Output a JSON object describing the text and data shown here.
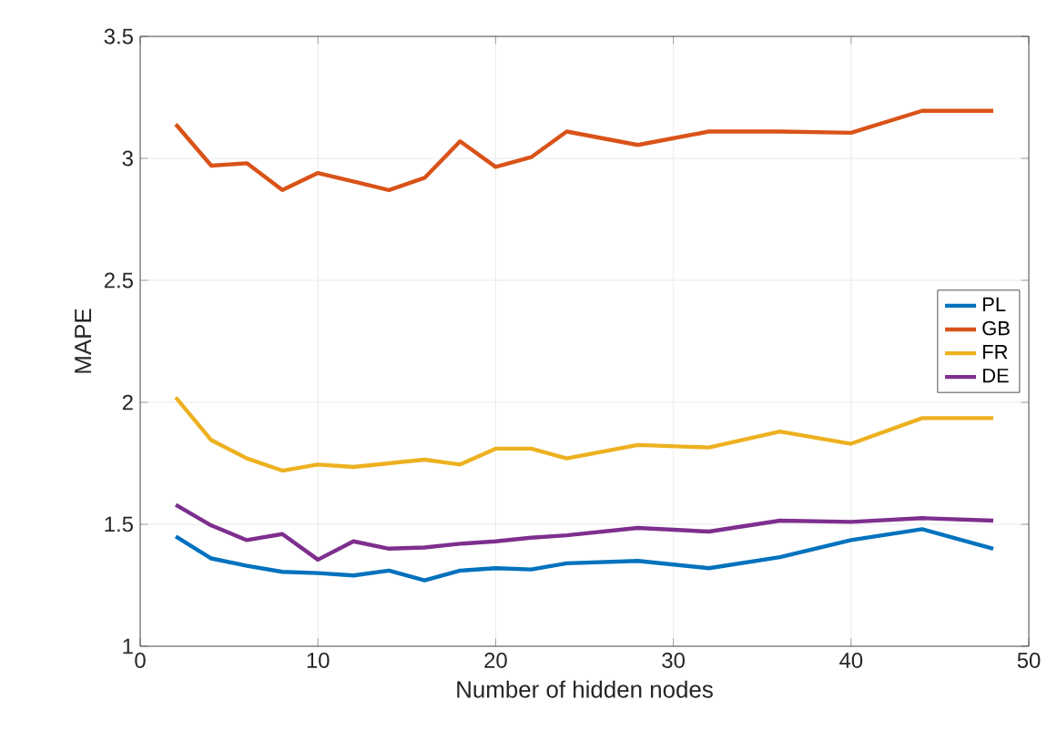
{
  "chart_data": {
    "type": "line",
    "xlabel": "Number of hidden nodes",
    "ylabel": "MAPE",
    "x": [
      2,
      4,
      6,
      8,
      10,
      12,
      14,
      16,
      18,
      20,
      22,
      24,
      28,
      32,
      36,
      40,
      44,
      48
    ],
    "series": [
      {
        "name": "PL",
        "color": "#0072bd",
        "values": [
          1.45,
          1.36,
          1.33,
          1.305,
          1.3,
          1.29,
          1.31,
          1.27,
          1.31,
          1.32,
          1.315,
          1.34,
          1.35,
          1.32,
          1.365,
          1.435,
          1.48,
          1.4
        ]
      },
      {
        "name": "GB",
        "color": "#d95319",
        "values": [
          3.14,
          2.97,
          2.98,
          2.87,
          2.94,
          2.905,
          2.87,
          2.92,
          3.07,
          2.965,
          3.005,
          3.11,
          3.055,
          3.11,
          3.11,
          3.105,
          3.195,
          3.195
        ]
      },
      {
        "name": "FR",
        "color": "#edb120",
        "values": [
          2.02,
          1.845,
          1.77,
          1.72,
          1.745,
          1.735,
          1.75,
          1.765,
          1.745,
          1.81,
          1.81,
          1.77,
          1.825,
          1.815,
          1.88,
          1.83,
          1.935,
          1.935
        ]
      },
      {
        "name": "DE",
        "color": "#7e2f8e",
        "values": [
          1.58,
          1.495,
          1.435,
          1.46,
          1.355,
          1.43,
          1.4,
          1.405,
          1.42,
          1.43,
          1.445,
          1.455,
          1.485,
          1.47,
          1.515,
          1.51,
          1.525,
          1.515
        ]
      }
    ],
    "xlim": [
      0,
      50
    ],
    "xticks": [
      0,
      10,
      20,
      30,
      40,
      50
    ],
    "ylim": [
      1,
      3.5
    ],
    "yticks": [
      1,
      1.5,
      2,
      2.5,
      3,
      3.5
    ],
    "grid": true,
    "legend": "right",
    "marker": "none",
    "line_style": "solid"
  }
}
